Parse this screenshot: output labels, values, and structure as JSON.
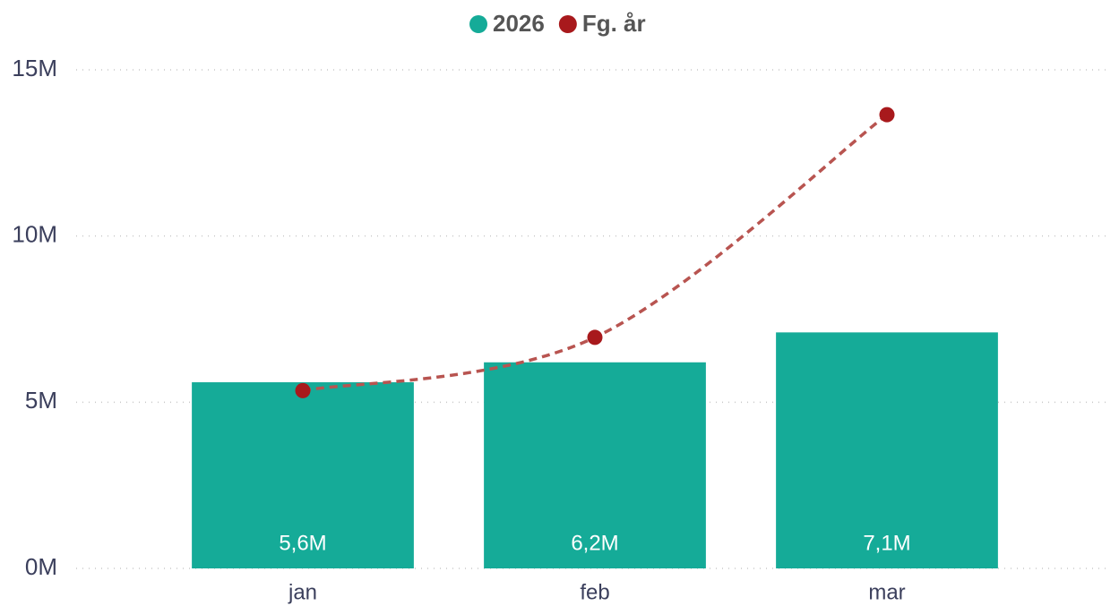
{
  "chart_data": {
    "type": "combo",
    "categories": [
      "jan",
      "feb",
      "mar"
    ],
    "series": [
      {
        "name": "2026",
        "type": "bar",
        "color": "#15ab98",
        "values": [
          5.6,
          6.2,
          7.1
        ],
        "value_labels": [
          "5,6M",
          "6,2M",
          "7,1M"
        ]
      },
      {
        "name": "Fg. år",
        "type": "line",
        "color": "#a8191c",
        "values": [
          5.35,
          6.95,
          13.65
        ]
      }
    ],
    "ylim": [
      0,
      15
    ],
    "yticks": [
      {
        "value": 0,
        "label": "0M"
      },
      {
        "value": 5,
        "label": "5M"
      },
      {
        "value": 10,
        "label": "10M"
      },
      {
        "value": 15,
        "label": "15M"
      }
    ],
    "grid": true,
    "legend": "top"
  }
}
